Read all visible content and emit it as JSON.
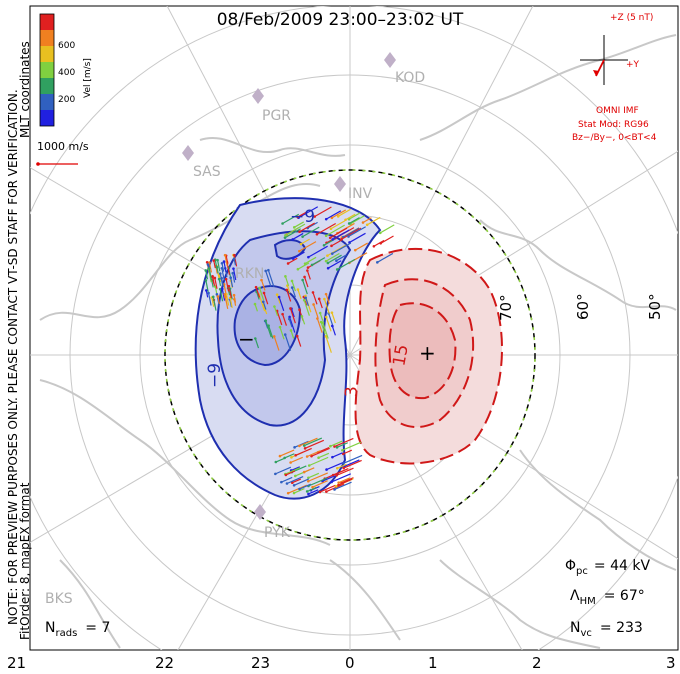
{
  "title": "08/Feb/2009 23:00–23:02 UT",
  "side_notes": {
    "line1": "NOTE: FOR PREVIEW PURPOSES ONLY. PLEASE CONTACT VT-SD STAFF FOR VERIFICATION.",
    "line2": "FitOrder: 8, mapEX format"
  },
  "coord_label": "MLT coordinates",
  "colorbar": {
    "title": "Vel [m/s]",
    "ticks": [
      "600",
      "400",
      "200"
    ],
    "colors": [
      "#e02020",
      "#f08020",
      "#e8c020",
      "#80d040",
      "#30a060",
      "#3060c0",
      "#2020e0"
    ]
  },
  "velocity_scale": {
    "label": "1000 m/s",
    "value": 1000
  },
  "imf": {
    "axis_top": "+Z (5 nT)",
    "axis_right": "+Y",
    "source": "OMNI IMF",
    "model": "Stat Mod: RG96",
    "condition": "Bz−/By−, 0<BT<4"
  },
  "stations": [
    "KOD",
    "PGR",
    "SAS",
    "INV",
    "RKN",
    "PYK",
    "BKS"
  ],
  "latitude_labels": [
    "70°",
    "60°",
    "50°"
  ],
  "mlt_labels": [
    "21",
    "22",
    "23",
    "0",
    "1",
    "2",
    "3"
  ],
  "contours": {
    "negative_labels": [
      "−9",
      "−9"
    ],
    "positive_labels": [
      "3",
      "15"
    ],
    "min_marker": "−",
    "max_marker": "+"
  },
  "stats": {
    "phi_symbol": "Φ",
    "phi_sub": "pc",
    "phi_value": "= 44 kV",
    "lambda_symbol": "Λ",
    "lambda_sub": "HM",
    "lambda_value": "= 67°",
    "nvc_symbol": "N",
    "nvc_sub": "vc",
    "nvc_value": "= 233",
    "nrads_symbol": "N",
    "nrads_sub": "rads",
    "nrads_value": "= 7"
  },
  "vector_count": 233
}
